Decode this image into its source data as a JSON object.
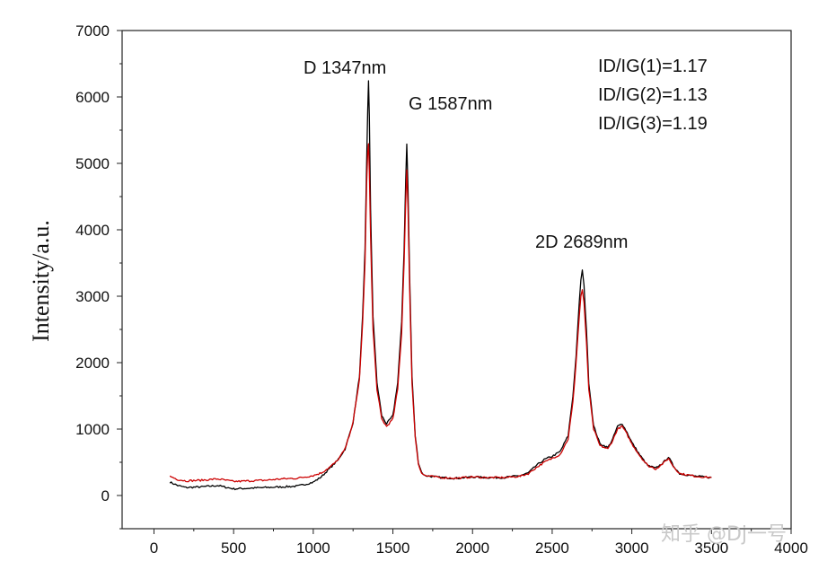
{
  "chart_data": {
    "type": "line",
    "title": "",
    "xlabel": "",
    "ylabel": "Intensity/a.u.",
    "xlim": [
      -200,
      4000
    ],
    "ylim": [
      -500,
      7000
    ],
    "xticks": [
      0,
      500,
      1000,
      1500,
      2000,
      2500,
      3000,
      3500,
      4000
    ],
    "yticks": [
      0,
      1000,
      2000,
      3000,
      4000,
      5000,
      6000,
      7000
    ],
    "grid": false,
    "legend": "none",
    "series": [
      {
        "color": "#000000",
        "x": [
          100,
          150,
          200,
          300,
          400,
          500,
          600,
          700,
          800,
          900,
          1000,
          1050,
          1100,
          1150,
          1200,
          1250,
          1290,
          1310,
          1325,
          1335,
          1342,
          1347,
          1352,
          1360,
          1375,
          1400,
          1430,
          1460,
          1500,
          1530,
          1555,
          1570,
          1580,
          1587,
          1595,
          1605,
          1620,
          1640,
          1660,
          1680,
          1700,
          1800,
          1900,
          2000,
          2100,
          2200,
          2300,
          2350,
          2400,
          2450,
          2500,
          2550,
          2600,
          2630,
          2650,
          2670,
          2680,
          2689,
          2700,
          2715,
          2730,
          2760,
          2800,
          2850,
          2880,
          2910,
          2940,
          2970,
          3000,
          3050,
          3100,
          3150,
          3200,
          3230,
          3260,
          3300,
          3400,
          3500
        ],
        "y": [
          200,
          150,
          120,
          130,
          150,
          100,
          110,
          120,
          130,
          140,
          200,
          280,
          400,
          520,
          700,
          1100,
          1800,
          2700,
          3700,
          5000,
          5800,
          6250,
          5700,
          4300,
          2700,
          1700,
          1200,
          1080,
          1200,
          1700,
          2600,
          3700,
          4700,
          5300,
          4600,
          3300,
          1800,
          900,
          500,
          350,
          300,
          270,
          260,
          280,
          270,
          270,
          300,
          340,
          450,
          540,
          590,
          660,
          900,
          1500,
          2100,
          2900,
          3250,
          3390,
          3150,
          2500,
          1700,
          1050,
          780,
          720,
          850,
          1040,
          1080,
          950,
          800,
          610,
          450,
          410,
          500,
          580,
          450,
          330,
          290,
          270
        ]
      },
      {
        "color": "#cc0000",
        "x": [
          100,
          150,
          200,
          300,
          400,
          500,
          600,
          700,
          800,
          900,
          1000,
          1050,
          1100,
          1150,
          1200,
          1250,
          1290,
          1310,
          1325,
          1335,
          1342,
          1347,
          1352,
          1360,
          1375,
          1400,
          1430,
          1460,
          1500,
          1530,
          1555,
          1570,
          1580,
          1587,
          1595,
          1605,
          1620,
          1640,
          1660,
          1680,
          1700,
          1800,
          1900,
          2000,
          2100,
          2200,
          2300,
          2350,
          2400,
          2450,
          2500,
          2550,
          2600,
          2630,
          2650,
          2670,
          2680,
          2689,
          2700,
          2715,
          2730,
          2760,
          2800,
          2850,
          2880,
          2910,
          2940,
          2970,
          3000,
          3050,
          3100,
          3150,
          3200,
          3230,
          3260,
          3300,
          3400,
          3500
        ],
        "y": [
          290,
          240,
          220,
          230,
          250,
          210,
          220,
          230,
          250,
          260,
          300,
          340,
          420,
          520,
          700,
          1100,
          1750,
          2600,
          3500,
          4700,
          5150,
          5300,
          4900,
          3900,
          2500,
          1600,
          1150,
          1040,
          1150,
          1600,
          2450,
          3500,
          4400,
          4900,
          4300,
          3100,
          1700,
          880,
          480,
          340,
          300,
          270,
          260,
          280,
          270,
          270,
          290,
          330,
          420,
          500,
          560,
          620,
          850,
          1400,
          2000,
          2700,
          3000,
          3100,
          2900,
          2300,
          1600,
          1000,
          750,
          700,
          830,
          1000,
          1040,
          920,
          780,
          600,
          450,
          400,
          490,
          560,
          440,
          330,
          290,
          270
        ]
      }
    ],
    "annotations": [
      {
        "text": "D 1347nm"
      },
      {
        "text": "G 1587nm"
      },
      {
        "text": "2D 2689nm"
      },
      {
        "text": "ID/IG(1)=1.17"
      },
      {
        "text": "ID/IG(2)=1.13"
      },
      {
        "text": "ID/IG(3)=1.19"
      }
    ]
  },
  "watermark": "知乎 @Dj一号"
}
